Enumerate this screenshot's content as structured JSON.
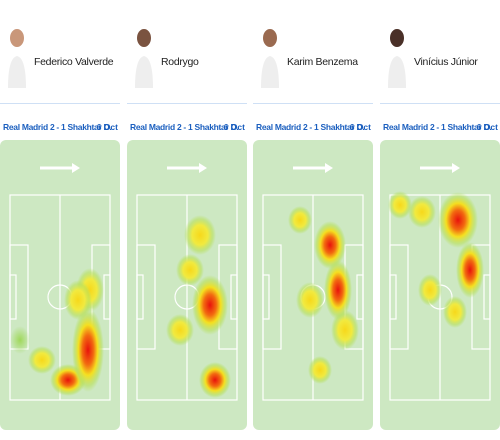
{
  "players": [
    {
      "name": "Federico Valverde",
      "match": "Real Madrid 2 - 1 Shakhtar D.",
      "date": "6 Oct"
    },
    {
      "name": "Rodrygo",
      "match": "Real Madrid 2 - 1 Shakhtar D.",
      "date": "6 Oct"
    },
    {
      "name": "Karim Benzema",
      "match": "Real Madrid 2 - 1 Shakhtar D.",
      "date": "6 Oct"
    },
    {
      "name": "Vinícius Júnior",
      "match": "Real Madrid 2 - 1 Shakhtar D.",
      "date": "6 Oct"
    }
  ]
}
